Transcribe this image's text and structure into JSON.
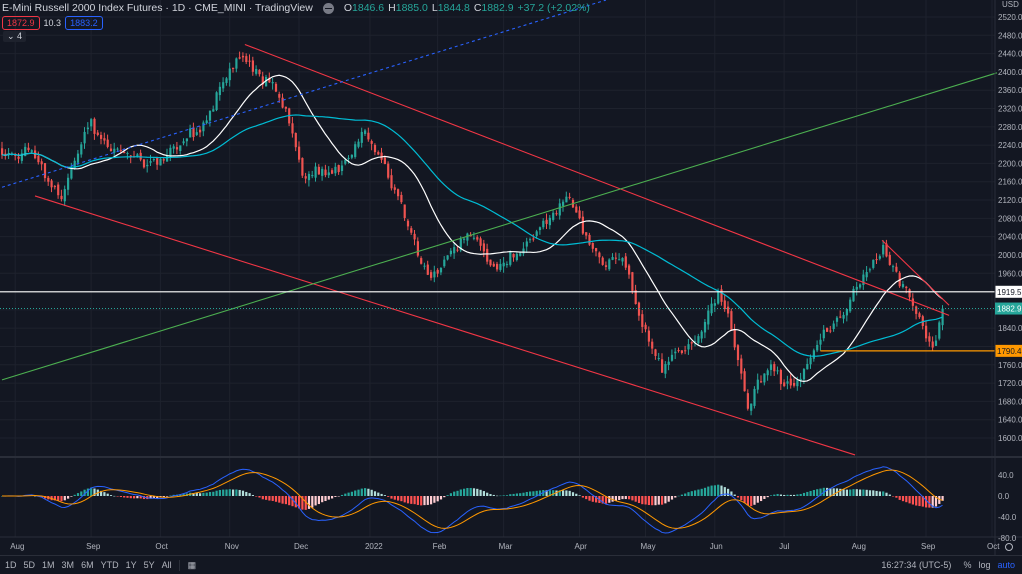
{
  "header": {
    "title": "E-Mini Russell 2000 Index Futures · 1D · CME_MINI · TradingView",
    "o_label": "O",
    "open": "1846.6",
    "h_label": "H",
    "high": "1885.0",
    "l_label": "L",
    "low": "1844.8",
    "c_label": "C",
    "close": "1882.9",
    "change": "+37.2 (+2.02%)",
    "bid": "1872.9",
    "spread": "10.3",
    "ask": "1883.2",
    "indicator_toggle": "⌄ 4"
  },
  "colors": {
    "up": "#26a69a",
    "down": "#ef5350",
    "ma_fast": "#ffffff",
    "ma_slow": "#00bcd4",
    "channel": "#f23645",
    "green_line": "#4caf50",
    "blue_line": "#2962ff",
    "orange": "#ff9800"
  },
  "chart_data": {
    "type": "candlestick",
    "currency": "USD",
    "ylim": [
      1560,
      2560
    ],
    "price_ticks": [
      "2520.0",
      "2480.0",
      "2440.0",
      "2400.0",
      "2360.0",
      "2320.0",
      "2280.0",
      "2240.0",
      "2200.0",
      "2160.0",
      "2120.0",
      "2080.0",
      "2040.0",
      "2000.0",
      "1960.0",
      "1920.0",
      "1880.0",
      "1840.0",
      "1800.0",
      "1760.0",
      "1720.0",
      "1680.0",
      "1640.0",
      "1600.0"
    ],
    "price_tick_values": [
      2520,
      2480,
      2440,
      2400,
      2360,
      2320,
      2280,
      2240,
      2200,
      2160,
      2120,
      2080,
      2040,
      2000,
      1960,
      1920,
      1880,
      1840,
      1800,
      1760,
      1720,
      1680,
      1640,
      1600
    ],
    "months": [
      {
        "label": "Aug",
        "bar": 4
      },
      {
        "label": "Sep",
        "bar": 27
      },
      {
        "label": "Oct",
        "bar": 48
      },
      {
        "label": "Nov",
        "bar": 69
      },
      {
        "label": "Dec",
        "bar": 90
      },
      {
        "label": "2022",
        "bar": 111.5
      },
      {
        "label": "Feb",
        "bar": 132
      },
      {
        "label": "Mar",
        "bar": 152
      },
      {
        "label": "Apr",
        "bar": 175
      },
      {
        "label": "May",
        "bar": 195
      },
      {
        "label": "Jun",
        "bar": 216
      },
      {
        "label": "Jul",
        "bar": 237
      },
      {
        "label": "Aug",
        "bar": 259
      },
      {
        "label": "Sep",
        "bar": 280
      },
      {
        "label": "Oct",
        "bar": 300
      }
    ],
    "keypoints": [
      [
        0,
        2230
      ],
      [
        9,
        2215
      ],
      [
        18,
        2135
      ],
      [
        27,
        2285
      ],
      [
        39,
        2200
      ],
      [
        52,
        2220
      ],
      [
        61,
        2290
      ],
      [
        73,
        2445
      ],
      [
        82,
        2360
      ],
      [
        88,
        2280
      ],
      [
        91,
        2180
      ],
      [
        100,
        2170
      ],
      [
        109,
        2270
      ],
      [
        115,
        2200
      ],
      [
        121,
        2120
      ],
      [
        126,
        1990
      ],
      [
        130,
        1945
      ],
      [
        136,
        2020
      ],
      [
        142,
        2040
      ],
      [
        148,
        1980
      ],
      [
        158,
        2000
      ],
      [
        164,
        2080
      ],
      [
        171,
        2120
      ],
      [
        176,
        2060
      ],
      [
        182,
        1990
      ],
      [
        188,
        1990
      ],
      [
        194,
        1860
      ],
      [
        200,
        1740
      ],
      [
        206,
        1800
      ],
      [
        212,
        1840
      ],
      [
        217,
        1905
      ],
      [
        221,
        1850
      ],
      [
        226,
        1680
      ],
      [
        233,
        1750
      ],
      [
        239,
        1720
      ],
      [
        245,
        1760
      ],
      [
        251,
        1850
      ],
      [
        261,
        1940
      ],
      [
        267,
        2025
      ],
      [
        271,
        1965
      ],
      [
        276,
        1880
      ],
      [
        282,
        1800
      ],
      [
        285,
        1883
      ]
    ],
    "last_price": {
      "label": "1882.9",
      "value": 1882.9
    },
    "levels": [
      {
        "label": "1919.5",
        "value": 1919.5,
        "color": "#ffffff"
      },
      {
        "label": "1790.4",
        "value": 1790.4,
        "color": "#ff9800",
        "from_bar": 248
      }
    ],
    "trendlines": [
      {
        "name": "upper-channel",
        "color": "#f23645",
        "from": [
          73.6,
          2460
        ],
        "to": [
          287,
          1868
        ]
      },
      {
        "name": "lower-channel",
        "color": "#f23645",
        "from": [
          10,
          2129
        ],
        "to": [
          258.5,
          1563
        ]
      },
      {
        "name": "green-trendline",
        "color": "#4caf50",
        "from": [
          0,
          1727
        ],
        "to": [
          301.5,
          2398
        ]
      },
      {
        "name": "blue-dashed",
        "color": "#2962ff",
        "from": [
          0,
          2148
        ],
        "to": [
          183,
          2557
        ]
      },
      {
        "name": "short-red",
        "color": "#f23645",
        "from": [
          266.7,
          2032
        ],
        "to": [
          287,
          1890
        ]
      }
    ],
    "moving_averages": [
      {
        "name": "MA 20",
        "period": 20,
        "color": "#ffffff"
      },
      {
        "name": "MA 50",
        "period": 50,
        "color": "#00bcd4"
      }
    ],
    "macd": {
      "ticks": [
        "40.0",
        "0.0",
        "-40.0",
        "-80.0"
      ],
      "tick_values": [
        40,
        0,
        -40,
        -80
      ],
      "ylim": [
        -85,
        75
      ]
    }
  },
  "bottom": {
    "ranges": [
      "1D",
      "5D",
      "1M",
      "3M",
      "6M",
      "YTD",
      "1Y",
      "5Y",
      "All"
    ],
    "time": "16:27:34 (UTC-5)",
    "percent": "%",
    "log": "log",
    "auto": "auto"
  }
}
